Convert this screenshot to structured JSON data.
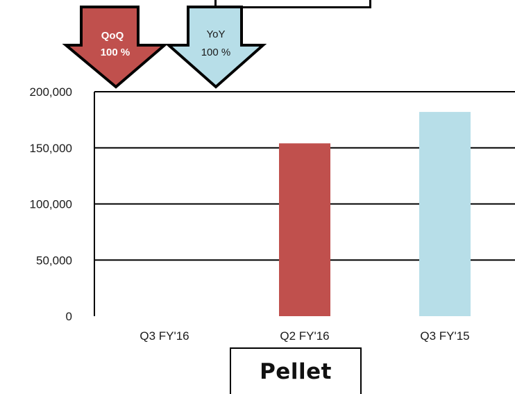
{
  "chart_data": {
    "type": "bar",
    "title": "Pellet",
    "categories": [
      "Q3 FY'16",
      "Q2 FY'16",
      "Q3 FY'15"
    ],
    "values": [
      0,
      154000,
      182000
    ],
    "bar_colors": [
      "#C0504D",
      "#C0504D",
      "#B7DEE8"
    ],
    "ylim": [
      0,
      200000
    ],
    "yticks": [
      0,
      50000,
      100000,
      150000,
      200000
    ],
    "ytick_labels": [
      "0",
      "50,000",
      "100,000",
      "150,000",
      "200,000"
    ],
    "grid": true
  },
  "indicators": [
    {
      "label": "QoQ",
      "value": "100 %",
      "direction": "down",
      "fill": "#C0504D",
      "text_color": "#ffffff"
    },
    {
      "label": "YoY",
      "value": "100 %",
      "direction": "down",
      "fill": "#B7DEE8",
      "text_color": "#1a1a1a"
    }
  ]
}
